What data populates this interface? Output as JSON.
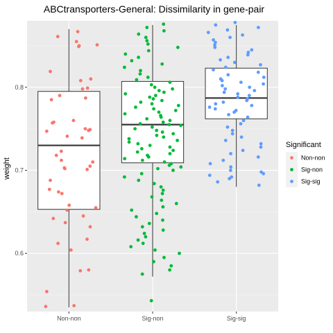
{
  "chart_data": {
    "type": "boxplot-jitter",
    "title": "ABCtransporters-General: Dissimilarity in gene-pair",
    "xlabel": "",
    "ylabel": "weight",
    "ylim": [
      0.53,
      0.88
    ],
    "yticks": [
      0.6,
      0.7,
      0.8
    ],
    "ytick_labels": [
      "0.6",
      "0.7",
      "0.8"
    ],
    "categories": [
      "Non-non",
      "Sig-non",
      "Sig-sig"
    ],
    "legend": {
      "title": "Significant",
      "placement": "right",
      "entries": [
        "Non-non",
        "Sig-non",
        "Sig-sig"
      ]
    },
    "colors": [
      "#F8766D",
      "#00BA38",
      "#619CFF"
    ],
    "grid": true,
    "boxes": [
      {
        "category": "Non-non",
        "whisker_low": 0.535,
        "q1": 0.653,
        "median": 0.73,
        "q3": 0.795,
        "whisker_high": 0.87
      },
      {
        "category": "Sig-non",
        "whisker_low": 0.572,
        "q1": 0.709,
        "median": 0.755,
        "q3": 0.807,
        "whisker_high": 0.875
      },
      {
        "category": "Sig-sig",
        "whisker_low": 0.68,
        "q1": 0.762,
        "median": 0.787,
        "q3": 0.823,
        "whisker_high": 0.875
      }
    ],
    "points": [
      {
        "category": "Non-non",
        "y": [
          0.867,
          0.861,
          0.855,
          0.851,
          0.85,
          0.849,
          0.819,
          0.81,
          0.808,
          0.799,
          0.798,
          0.79,
          0.787,
          0.785,
          0.76,
          0.758,
          0.757,
          0.75,
          0.749,
          0.748,
          0.747,
          0.741,
          0.739,
          0.723,
          0.718,
          0.712,
          0.71,
          0.705,
          0.703,
          0.702,
          0.701,
          0.688,
          0.677,
          0.674,
          0.672,
          0.658,
          0.655,
          0.652,
          0.645,
          0.642,
          0.637,
          0.632,
          0.617,
          0.612,
          0.604,
          0.58,
          0.579,
          0.554,
          0.537,
          0.536
        ]
      },
      {
        "category": "Sig-non",
        "y": [
          0.876,
          0.872,
          0.868,
          0.864,
          0.86,
          0.856,
          0.852,
          0.848,
          0.844,
          0.84,
          0.836,
          0.832,
          0.828,
          0.824,
          0.82,
          0.816,
          0.812,
          0.809,
          0.806,
          0.803,
          0.8,
          0.798,
          0.796,
          0.794,
          0.792,
          0.79,
          0.788,
          0.786,
          0.784,
          0.782,
          0.78,
          0.778,
          0.776,
          0.774,
          0.772,
          0.77,
          0.768,
          0.766,
          0.764,
          0.762,
          0.76,
          0.758,
          0.756,
          0.755,
          0.754,
          0.752,
          0.75,
          0.748,
          0.746,
          0.744,
          0.742,
          0.74,
          0.738,
          0.736,
          0.734,
          0.732,
          0.73,
          0.728,
          0.726,
          0.724,
          0.722,
          0.72,
          0.718,
          0.716,
          0.714,
          0.712,
          0.71,
          0.708,
          0.706,
          0.704,
          0.702,
          0.7,
          0.696,
          0.692,
          0.688,
          0.684,
          0.68,
          0.676,
          0.672,
          0.668,
          0.664,
          0.66,
          0.656,
          0.652,
          0.648,
          0.644,
          0.64,
          0.636,
          0.632,
          0.628,
          0.624,
          0.62,
          0.616,
          0.612,
          0.608,
          0.604,
          0.6,
          0.595,
          0.59,
          0.585,
          0.58,
          0.575,
          0.543
        ]
      },
      {
        "category": "Sig-sig",
        "y": [
          0.878,
          0.875,
          0.872,
          0.869,
          0.866,
          0.863,
          0.86,
          0.857,
          0.854,
          0.851,
          0.848,
          0.845,
          0.842,
          0.839,
          0.836,
          0.833,
          0.83,
          0.827,
          0.824,
          0.821,
          0.818,
          0.815,
          0.812,
          0.81,
          0.808,
          0.806,
          0.804,
          0.802,
          0.8,
          0.798,
          0.796,
          0.794,
          0.792,
          0.79,
          0.788,
          0.786,
          0.784,
          0.782,
          0.78,
          0.778,
          0.776,
          0.774,
          0.772,
          0.77,
          0.767,
          0.764,
          0.76,
          0.756,
          0.752,
          0.748,
          0.744,
          0.74,
          0.736,
          0.732,
          0.728,
          0.724,
          0.72,
          0.716,
          0.712,
          0.708,
          0.704,
          0.7,
          0.698,
          0.696,
          0.694,
          0.692,
          0.69,
          0.686,
          0.682
        ]
      }
    ]
  }
}
